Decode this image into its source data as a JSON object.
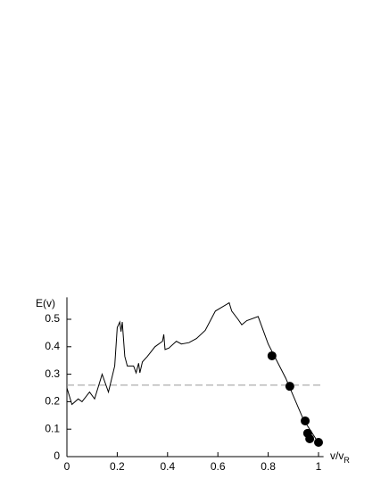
{
  "chart_data": {
    "type": "line",
    "ylabel": "E(v)",
    "xlabel": "v/v",
    "xlabel_subscript": "R",
    "xlim": [
      0,
      1.02
    ],
    "ylim": [
      0,
      0.58
    ],
    "xticks": [
      0,
      0.2,
      0.4,
      0.6,
      0.8,
      1
    ],
    "yticks": [
      0,
      0.1,
      0.2,
      0.3,
      0.4,
      0.5
    ],
    "reference_line": 0.26,
    "reference_color": "#999999",
    "series": [
      {
        "style": "line",
        "color": "#000000",
        "x": [
          0,
          0.02,
          0.045,
          0.06,
          0.09,
          0.11,
          0.14,
          0.165,
          0.19,
          0.2,
          0.21,
          0.215,
          0.22,
          0.23,
          0.24,
          0.265,
          0.275,
          0.285,
          0.29,
          0.3,
          0.32,
          0.35,
          0.38,
          0.385,
          0.39,
          0.405,
          0.435,
          0.455,
          0.485,
          0.515,
          0.55,
          0.59,
          0.645,
          0.655,
          0.68,
          0.695,
          0.715,
          0.76,
          0.8,
          0.87,
          0.94,
          1.0
        ],
        "values": [
          0.25,
          0.19,
          0.21,
          0.2,
          0.235,
          0.21,
          0.3,
          0.235,
          0.33,
          0.47,
          0.49,
          0.455,
          0.49,
          0.365,
          0.33,
          0.33,
          0.305,
          0.34,
          0.305,
          0.345,
          0.365,
          0.4,
          0.42,
          0.445,
          0.39,
          0.395,
          0.42,
          0.41,
          0.415,
          0.43,
          0.46,
          0.53,
          0.56,
          0.53,
          0.5,
          0.48,
          0.495,
          0.51,
          0.41,
          0.285,
          0.135,
          0.05
        ]
      },
      {
        "style": "markers",
        "color": "#000000",
        "x": [
          0.815,
          0.886,
          0.947,
          0.957,
          0.965,
          1.0
        ],
        "values": [
          0.367,
          0.256,
          0.13,
          0.085,
          0.065,
          0.052
        ]
      }
    ]
  }
}
